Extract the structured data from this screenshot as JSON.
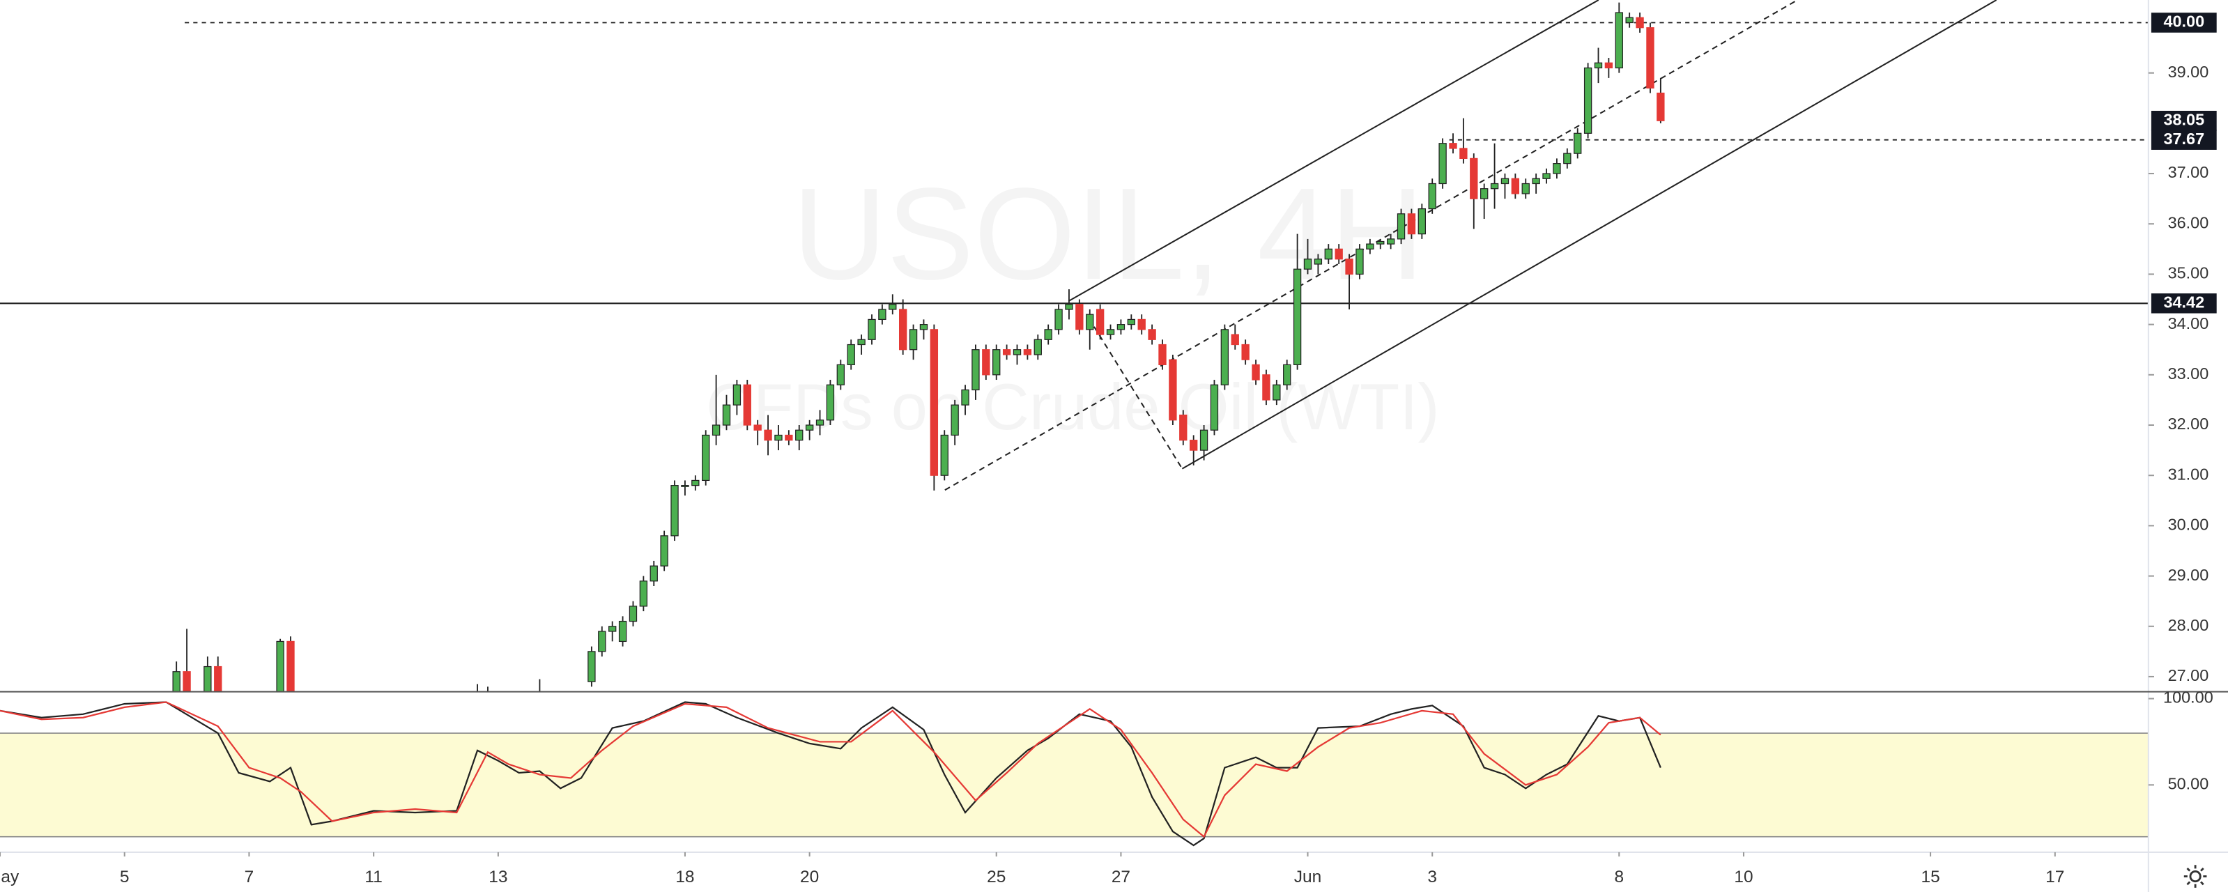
{
  "chart_data": {
    "type": "candlestick",
    "watermark": {
      "title": "USOIL, 4H",
      "subtitle": "CFDs on Crude Oil (WTI)"
    },
    "xlim": [
      0,
      207
    ],
    "xticks": [
      {
        "value": 0,
        "label": "ay"
      },
      {
        "value": 12,
        "label": "5"
      },
      {
        "value": 24,
        "label": "7"
      },
      {
        "value": 36,
        "label": "11"
      },
      {
        "value": 48,
        "label": "13"
      },
      {
        "value": 66,
        "label": "18"
      },
      {
        "value": 78,
        "label": "20"
      },
      {
        "value": 96,
        "label": "25"
      },
      {
        "value": 108,
        "label": "27"
      },
      {
        "value": 126,
        "label": "Jun"
      },
      {
        "value": 138,
        "label": "3"
      },
      {
        "value": 156,
        "label": "8"
      },
      {
        "value": 168,
        "label": "10"
      },
      {
        "value": 186,
        "label": "15"
      },
      {
        "value": 198,
        "label": "17"
      }
    ],
    "ylim": [
      26.7,
      40.45
    ],
    "yticks": [
      {
        "value": 27,
        "label": "27.00"
      },
      {
        "value": 28,
        "label": "28.00"
      },
      {
        "value": 29,
        "label": "29.00"
      },
      {
        "value": 30,
        "label": "30.00"
      },
      {
        "value": 31,
        "label": "31.00"
      },
      {
        "value": 32,
        "label": "32.00"
      },
      {
        "value": 33,
        "label": "33.00"
      },
      {
        "value": 34,
        "label": "34.00"
      },
      {
        "value": 35,
        "label": "35.00"
      },
      {
        "value": 36,
        "label": "36.00"
      },
      {
        "value": 37,
        "label": "37.00"
      },
      {
        "value": 39,
        "label": "39.00"
      }
    ],
    "price_lines": [
      {
        "value": 40,
        "label": "40.00",
        "line": "dashed"
      },
      {
        "value": 38.05,
        "label": "38.05"
      },
      {
        "value": 37.67,
        "label": "37.67",
        "line": "dashed"
      },
      {
        "value": 34.42,
        "label": "34.42",
        "line": "solid"
      }
    ],
    "series": [
      {
        "up_color": "#4caf50",
        "down_color": "#e53935",
        "x": [
          17,
          18,
          20,
          21,
          27,
          28,
          46,
          47,
          52,
          57,
          58,
          59,
          60,
          61,
          62,
          63,
          64,
          65,
          66,
          67,
          68,
          69,
          70,
          71,
          72,
          73,
          74,
          75,
          76,
          77,
          78,
          79,
          80,
          81,
          82,
          83,
          84,
          85,
          86,
          87,
          88,
          89,
          90,
          91,
          92,
          93,
          94,
          95,
          96,
          97,
          98,
          99,
          100,
          101,
          102,
          103,
          104,
          105,
          106,
          107,
          108,
          109,
          110,
          111,
          112,
          113,
          114,
          115,
          116,
          117,
          118,
          119,
          120,
          121,
          122,
          123,
          124,
          125,
          126,
          127,
          128,
          129,
          130,
          131,
          132,
          133,
          134,
          135,
          136,
          137,
          138,
          139,
          140,
          141,
          142,
          143,
          144,
          145,
          146,
          147,
          148,
          149,
          150,
          151,
          152,
          153,
          154,
          155,
          156,
          157,
          158,
          159,
          160
        ],
        "ohlc": [
          [
            26.2,
            27.3,
            26.0,
            27.1
          ],
          [
            27.1,
            27.95,
            26.3,
            26.5
          ],
          [
            26.3,
            27.4,
            26.1,
            27.2
          ],
          [
            27.2,
            27.4,
            26.4,
            26.6
          ],
          [
            26.1,
            27.75,
            26.0,
            27.7
          ],
          [
            27.7,
            27.8,
            26.3,
            26.5
          ],
          [
            26.4,
            26.85,
            26.3,
            26.5
          ],
          [
            26.5,
            26.8,
            26.4,
            26.6
          ],
          [
            26.4,
            26.95,
            26.3,
            26.6
          ],
          [
            26.9,
            27.6,
            26.8,
            27.5
          ],
          [
            27.5,
            28.0,
            27.4,
            27.9
          ],
          [
            27.9,
            28.1,
            27.7,
            28.0
          ],
          [
            27.7,
            28.2,
            27.6,
            28.1
          ],
          [
            28.1,
            28.5,
            28.0,
            28.4
          ],
          [
            28.4,
            29.0,
            28.3,
            28.9
          ],
          [
            28.9,
            29.3,
            28.8,
            29.2
          ],
          [
            29.2,
            29.9,
            29.1,
            29.8
          ],
          [
            29.8,
            30.9,
            29.7,
            30.8
          ],
          [
            30.8,
            30.9,
            30.6,
            30.8
          ],
          [
            30.8,
            31.0,
            30.7,
            30.9
          ],
          [
            30.9,
            31.9,
            30.8,
            31.8
          ],
          [
            31.8,
            33.0,
            31.6,
            32.0
          ],
          [
            32.0,
            32.6,
            31.9,
            32.4
          ],
          [
            32.4,
            32.9,
            32.2,
            32.8
          ],
          [
            32.8,
            32.9,
            31.9,
            32.0
          ],
          [
            32.0,
            32.1,
            31.6,
            31.9
          ],
          [
            31.9,
            32.2,
            31.4,
            31.7
          ],
          [
            31.7,
            32.0,
            31.5,
            31.8
          ],
          [
            31.8,
            31.9,
            31.6,
            31.7
          ],
          [
            31.7,
            32.0,
            31.5,
            31.9
          ],
          [
            31.9,
            32.1,
            31.7,
            32.0
          ],
          [
            32.0,
            32.3,
            31.8,
            32.1
          ],
          [
            32.1,
            32.9,
            32.0,
            32.8
          ],
          [
            32.8,
            33.3,
            32.7,
            33.2
          ],
          [
            33.2,
            33.7,
            33.1,
            33.6
          ],
          [
            33.6,
            33.8,
            33.4,
            33.7
          ],
          [
            33.7,
            34.2,
            33.6,
            34.1
          ],
          [
            34.1,
            34.4,
            34.0,
            34.3
          ],
          [
            34.3,
            34.6,
            34.2,
            34.4
          ],
          [
            34.3,
            34.5,
            33.4,
            33.5
          ],
          [
            33.5,
            34.0,
            33.3,
            33.9
          ],
          [
            33.9,
            34.1,
            33.7,
            34.0
          ],
          [
            33.9,
            34.0,
            30.7,
            31.0
          ],
          [
            31.0,
            31.9,
            30.9,
            31.8
          ],
          [
            31.8,
            32.5,
            31.6,
            32.4
          ],
          [
            32.4,
            32.8,
            32.2,
            32.7
          ],
          [
            32.7,
            33.6,
            32.5,
            33.5
          ],
          [
            33.5,
            33.6,
            32.9,
            33.0
          ],
          [
            33.0,
            33.6,
            32.9,
            33.5
          ],
          [
            33.5,
            33.6,
            33.3,
            33.4
          ],
          [
            33.4,
            33.6,
            33.2,
            33.5
          ],
          [
            33.5,
            33.6,
            33.3,
            33.4
          ],
          [
            33.4,
            33.8,
            33.3,
            33.7
          ],
          [
            33.7,
            34.0,
            33.6,
            33.9
          ],
          [
            33.9,
            34.4,
            33.8,
            34.3
          ],
          [
            34.3,
            34.7,
            34.1,
            34.4
          ],
          [
            34.4,
            34.5,
            33.8,
            33.9
          ],
          [
            33.9,
            34.3,
            33.5,
            34.2
          ],
          [
            34.3,
            34.4,
            33.7,
            33.8
          ],
          [
            33.8,
            34.0,
            33.7,
            33.9
          ],
          [
            33.9,
            34.1,
            33.8,
            34.0
          ],
          [
            34.0,
            34.2,
            33.9,
            34.1
          ],
          [
            34.1,
            34.2,
            33.8,
            33.9
          ],
          [
            33.9,
            34.0,
            33.6,
            33.7
          ],
          [
            33.6,
            33.7,
            33.1,
            33.2
          ],
          [
            33.3,
            33.4,
            32.0,
            32.1
          ],
          [
            32.2,
            32.3,
            31.6,
            31.7
          ],
          [
            31.7,
            31.8,
            31.2,
            31.5
          ],
          [
            31.5,
            32.0,
            31.3,
            31.9
          ],
          [
            31.9,
            32.9,
            31.8,
            32.8
          ],
          [
            32.8,
            34.0,
            32.7,
            33.9
          ],
          [
            33.8,
            34.0,
            33.5,
            33.6
          ],
          [
            33.6,
            33.7,
            33.2,
            33.3
          ],
          [
            33.2,
            33.3,
            32.8,
            32.9
          ],
          [
            33.0,
            33.1,
            32.4,
            32.5
          ],
          [
            32.5,
            32.9,
            32.4,
            32.8
          ],
          [
            32.8,
            33.3,
            32.7,
            33.2
          ],
          [
            33.2,
            35.8,
            33.1,
            35.1
          ],
          [
            35.1,
            35.7,
            35.0,
            35.3
          ],
          [
            35.2,
            35.4,
            35.0,
            35.3
          ],
          [
            35.3,
            35.6,
            35.2,
            35.5
          ],
          [
            35.5,
            35.6,
            35.2,
            35.3
          ],
          [
            35.3,
            35.4,
            34.3,
            35.0
          ],
          [
            35.0,
            35.6,
            34.9,
            35.5
          ],
          [
            35.5,
            35.7,
            35.4,
            35.6
          ],
          [
            35.6,
            35.7,
            35.5,
            35.65
          ],
          [
            35.6,
            35.8,
            35.5,
            35.7
          ],
          [
            35.7,
            36.3,
            35.6,
            36.2
          ],
          [
            36.2,
            36.3,
            35.7,
            35.8
          ],
          [
            35.8,
            36.4,
            35.7,
            36.3
          ],
          [
            36.3,
            36.9,
            36.2,
            36.8
          ],
          [
            36.8,
            37.7,
            36.7,
            37.6
          ],
          [
            37.6,
            37.8,
            37.4,
            37.5
          ],
          [
            37.5,
            38.1,
            37.2,
            37.3
          ],
          [
            37.3,
            37.4,
            35.9,
            36.5
          ],
          [
            36.5,
            36.8,
            36.1,
            36.7
          ],
          [
            36.7,
            37.6,
            36.3,
            36.8
          ],
          [
            36.8,
            37.0,
            36.5,
            36.9
          ],
          [
            36.9,
            37.0,
            36.5,
            36.6
          ],
          [
            36.6,
            36.9,
            36.5,
            36.8
          ],
          [
            36.8,
            37.0,
            36.6,
            36.9
          ],
          [
            36.9,
            37.1,
            36.8,
            37.0
          ],
          [
            37.0,
            37.3,
            36.9,
            37.2
          ],
          [
            37.2,
            37.5,
            37.1,
            37.4
          ],
          [
            37.4,
            37.9,
            37.3,
            37.8
          ],
          [
            37.8,
            39.2,
            37.7,
            39.1
          ],
          [
            39.1,
            39.5,
            38.8,
            39.2
          ],
          [
            39.2,
            39.3,
            38.9,
            39.1
          ],
          [
            39.1,
            40.4,
            39.0,
            40.2
          ],
          [
            40.0,
            40.2,
            39.9,
            40.1
          ],
          [
            40.1,
            40.2,
            39.8,
            39.9
          ],
          [
            39.9,
            40.0,
            38.6,
            38.7
          ],
          [
            38.6,
            38.9,
            38.0,
            38.05
          ]
        ]
      }
    ],
    "stochastic": {
      "ylim": [
        11,
        104
      ],
      "yticks": [
        {
          "value": 100,
          "label": "100.00"
        },
        {
          "value": 50,
          "label": "50.00"
        }
      ],
      "band": [
        20,
        80
      ],
      "band_color": "#fdfbd3",
      "series": [
        {
          "color": "#222222",
          "x": [
            0,
            4,
            8,
            12,
            16,
            21,
            23,
            26,
            28,
            30,
            32,
            36,
            40,
            44,
            46,
            48,
            50,
            52,
            54,
            56,
            59,
            62,
            66,
            68,
            71,
            75,
            78,
            81,
            83,
            86,
            89,
            91,
            93,
            96,
            99,
            101,
            104,
            107,
            109,
            111,
            113,
            115,
            116,
            118,
            121,
            123,
            125,
            127,
            131,
            134,
            136,
            138,
            141,
            143,
            145,
            147,
            149,
            151,
            154,
            156,
            158,
            160
          ],
          "values": [
            93,
            89,
            91,
            97,
            98,
            80,
            57,
            52,
            60,
            27,
            29,
            35,
            34,
            35,
            70,
            64,
            57,
            58,
            48,
            54,
            83,
            87,
            98,
            97,
            89,
            80,
            74,
            71,
            83,
            95,
            82,
            56,
            34,
            54,
            70,
            77,
            91,
            87,
            72,
            43,
            23,
            15,
            19,
            60,
            66,
            60,
            60,
            83,
            84,
            91,
            94,
            96,
            84,
            60,
            56,
            48,
            56,
            62,
            90,
            87,
            89,
            60
          ]
        },
        {
          "color": "#e53935",
          "x": [
            0,
            4,
            8,
            12,
            16,
            21,
            24,
            27,
            29,
            32,
            36,
            40,
            44,
            47,
            49,
            52,
            55,
            58,
            61,
            66,
            70,
            74,
            79,
            82,
            86,
            90,
            94,
            97,
            100,
            105,
            108,
            111,
            114,
            116,
            118,
            121,
            124,
            127,
            130,
            133,
            137,
            140,
            143,
            147,
            150,
            153,
            155,
            158,
            160
          ],
          "values": [
            93,
            88,
            89,
            95,
            98,
            84,
            60,
            54,
            46,
            29,
            34,
            36,
            34,
            69,
            62,
            56,
            54,
            70,
            84,
            97,
            95,
            83,
            75,
            75,
            93,
            69,
            41,
            57,
            74,
            94,
            82,
            57,
            30,
            20,
            44,
            62,
            58,
            72,
            83,
            86,
            93,
            91,
            68,
            50,
            56,
            72,
            86,
            89,
            79
          ]
        }
      ]
    }
  }
}
